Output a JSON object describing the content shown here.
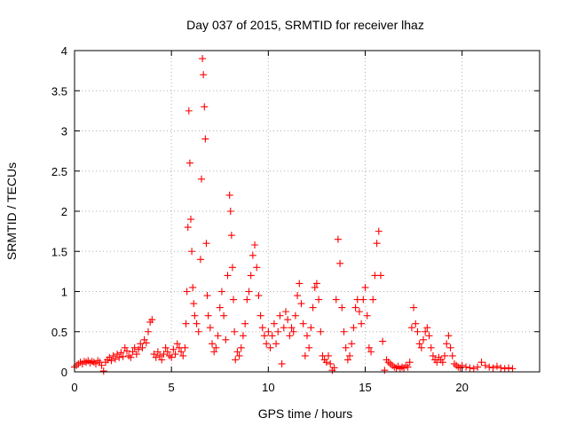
{
  "chart_data": {
    "type": "scatter",
    "title": "Day 037 of 2015, SRMTID for receiver lhaz",
    "xlabel": "GPS time / hours",
    "ylabel": "SRMTID / TECUs",
    "xlim": [
      0,
      24
    ],
    "ylim": [
      0,
      4
    ],
    "xticks": [
      0,
      5,
      10,
      15,
      20
    ],
    "xtick_labels": [
      "0",
      "5",
      "10",
      "15",
      "20"
    ],
    "yticks": [
      0,
      0.5,
      1,
      1.5,
      2,
      2.5,
      3,
      3.5,
      4
    ],
    "ytick_labels": [
      "0",
      "0.5",
      "1",
      "1.5",
      "2",
      "2.5",
      "3",
      "3.5",
      "4"
    ],
    "grid": true,
    "marker": "+",
    "color": "#ff0000",
    "series": [
      {
        "name": "SRMTID",
        "x": [
          0.0,
          0.1,
          0.2,
          0.3,
          0.4,
          0.5,
          0.6,
          0.7,
          0.8,
          0.9,
          1.0,
          1.1,
          1.2,
          1.3,
          1.4,
          1.5,
          1.6,
          1.7,
          1.8,
          1.9,
          2.0,
          2.1,
          2.2,
          2.3,
          2.4,
          2.5,
          2.6,
          2.7,
          2.8,
          2.9,
          3.0,
          3.1,
          3.2,
          3.3,
          3.4,
          3.5,
          3.6,
          3.7,
          3.8,
          3.9,
          4.0,
          4.1,
          4.2,
          4.3,
          4.4,
          4.5,
          4.6,
          4.7,
          4.8,
          4.9,
          5.0,
          5.1,
          5.2,
          5.3,
          5.4,
          5.5,
          5.6,
          5.7,
          5.75,
          5.8,
          5.85,
          5.9,
          5.95,
          6.0,
          6.05,
          6.1,
          6.15,
          6.2,
          6.3,
          6.4,
          6.5,
          6.55,
          6.6,
          6.65,
          6.7,
          6.75,
          6.8,
          6.85,
          6.9,
          7.0,
          7.1,
          7.2,
          7.3,
          7.4,
          7.5,
          7.6,
          7.7,
          7.8,
          7.9,
          8.0,
          8.05,
          8.1,
          8.15,
          8.2,
          8.25,
          8.3,
          8.4,
          8.5,
          8.6,
          8.7,
          8.8,
          8.9,
          9.0,
          9.1,
          9.2,
          9.3,
          9.4,
          9.5,
          9.6,
          9.7,
          9.8,
          9.9,
          10.0,
          10.1,
          10.2,
          10.3,
          10.4,
          10.5,
          10.6,
          10.7,
          10.8,
          10.9,
          11.0,
          11.1,
          11.2,
          11.3,
          11.4,
          11.5,
          11.6,
          11.7,
          11.8,
          11.9,
          12.0,
          12.1,
          12.2,
          12.3,
          12.4,
          12.5,
          12.6,
          12.7,
          12.8,
          12.9,
          13.0,
          13.1,
          13.2,
          13.3,
          13.4,
          13.5,
          13.6,
          13.7,
          13.8,
          13.9,
          14.0,
          14.1,
          14.2,
          14.3,
          14.4,
          14.5,
          14.6,
          14.7,
          14.8,
          14.9,
          15.0,
          15.1,
          15.2,
          15.3,
          15.4,
          15.5,
          15.6,
          15.7,
          15.8,
          15.9,
          16.0,
          16.1,
          16.2,
          16.3,
          16.4,
          16.5,
          16.6,
          16.7,
          16.8,
          16.9,
          17.0,
          17.1,
          17.2,
          17.3,
          17.4,
          17.5,
          17.6,
          17.7,
          17.8,
          17.9,
          18.0,
          18.1,
          18.2,
          18.3,
          18.4,
          18.5,
          18.6,
          18.7,
          18.8,
          18.9,
          19.0,
          19.1,
          19.2,
          19.3,
          19.4,
          19.5,
          19.6,
          19.7,
          19.8,
          19.9,
          20.0,
          20.2,
          20.4,
          20.6,
          20.8,
          21.0,
          21.2,
          21.4,
          21.6,
          21.8,
          22.0,
          22.2,
          22.4,
          22.6
        ],
        "y": [
          0.06,
          0.08,
          0.1,
          0.12,
          0.1,
          0.13,
          0.12,
          0.14,
          0.11,
          0.13,
          0.12,
          0.1,
          0.14,
          0.12,
          0.08,
          0.01,
          0.12,
          0.15,
          0.18,
          0.14,
          0.2,
          0.16,
          0.22,
          0.18,
          0.24,
          0.19,
          0.3,
          0.26,
          0.2,
          0.18,
          0.25,
          0.3,
          0.22,
          0.28,
          0.35,
          0.3,
          0.4,
          0.36,
          0.5,
          0.62,
          0.65,
          0.22,
          0.18,
          0.25,
          0.2,
          0.15,
          0.22,
          0.3,
          0.25,
          0.2,
          0.18,
          0.28,
          0.22,
          0.35,
          0.3,
          0.25,
          0.2,
          0.3,
          0.6,
          1.0,
          1.8,
          3.25,
          2.6,
          1.9,
          1.5,
          1.05,
          0.85,
          0.7,
          0.6,
          0.5,
          1.4,
          2.4,
          3.9,
          3.7,
          3.3,
          2.9,
          1.6,
          0.95,
          0.7,
          0.55,
          0.35,
          0.25,
          0.3,
          0.45,
          0.8,
          1.0,
          0.7,
          0.4,
          1.2,
          2.2,
          2.0,
          1.7,
          1.3,
          0.9,
          0.5,
          0.15,
          0.25,
          0.2,
          0.3,
          0.45,
          0.6,
          0.9,
          1.0,
          1.2,
          1.45,
          1.58,
          1.3,
          0.95,
          0.7,
          0.55,
          0.45,
          0.35,
          0.5,
          0.3,
          0.45,
          0.6,
          0.35,
          0.5,
          0.7,
          0.1,
          0.55,
          0.75,
          0.65,
          0.45,
          0.55,
          0.5,
          0.7,
          0.95,
          1.1,
          0.85,
          0.6,
          0.2,
          0.45,
          0.3,
          0.55,
          0.8,
          1.05,
          1.1,
          0.9,
          0.5,
          0.2,
          0.15,
          0.12,
          0.2,
          0.1,
          0.02,
          0.05,
          0.9,
          1.65,
          1.35,
          0.8,
          0.5,
          0.3,
          0.15,
          0.2,
          0.35,
          0.55,
          0.8,
          0.9,
          0.75,
          0.6,
          0.9,
          1.05,
          0.7,
          0.3,
          0.25,
          0.9,
          1.2,
          1.6,
          1.75,
          1.2,
          0.38,
          0.02,
          0.15,
          0.12,
          0.1,
          0.08,
          0.06,
          0.05,
          0.07,
          0.04,
          0.06,
          0.05,
          0.08,
          0.06,
          0.12,
          0.55,
          0.8,
          0.6,
          0.5,
          0.35,
          0.3,
          0.4,
          0.5,
          0.55,
          0.45,
          0.3,
          0.2,
          0.15,
          0.12,
          0.18,
          0.15,
          0.12,
          0.2,
          0.35,
          0.45,
          0.3,
          0.2,
          0.1,
          0.08,
          0.06,
          0.05,
          0.08,
          0.06,
          0.05,
          0.04,
          0.06,
          0.12,
          0.08,
          0.06,
          0.05,
          0.07,
          0.05,
          0.04,
          0.05,
          0.04
        ]
      }
    ]
  }
}
